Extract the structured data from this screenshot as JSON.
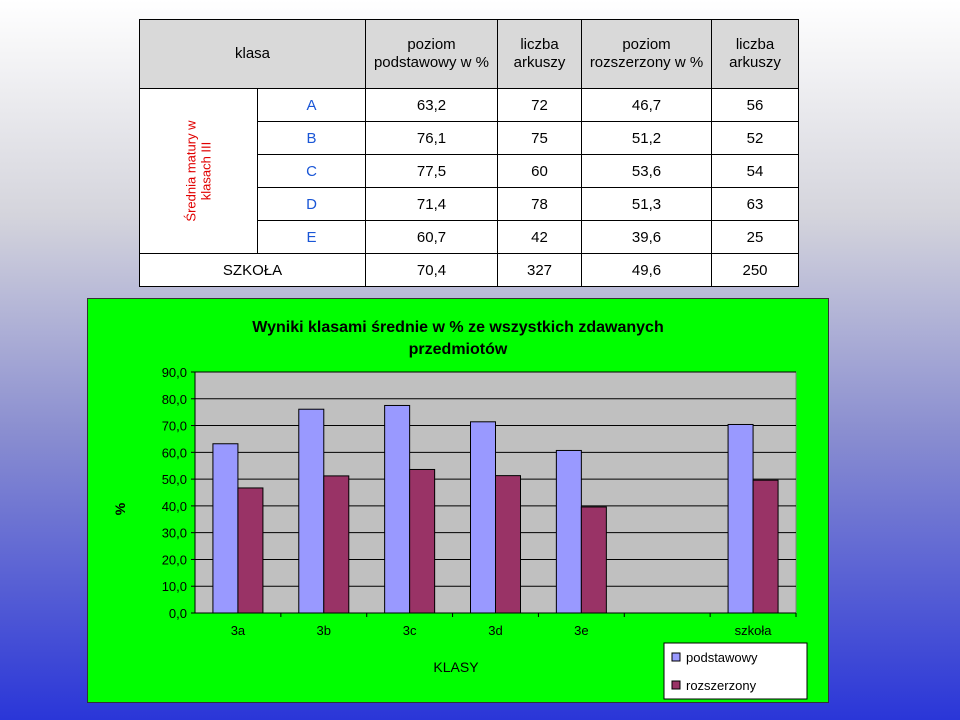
{
  "table": {
    "header": {
      "klasa": "klasa",
      "col1": [
        "poziom",
        "podstawowy w %"
      ],
      "col2": [
        "liczba",
        "arkuszy"
      ],
      "col3": [
        "poziom",
        "rozszerzony w %"
      ],
      "col4": [
        "liczba",
        "arkuszy"
      ]
    },
    "side_label": [
      "Średnia matury w",
      "klasach III"
    ],
    "rows": [
      {
        "cls": "A",
        "v1": "63,2",
        "v2": "72",
        "v3": "46,7",
        "v4": "56"
      },
      {
        "cls": "B",
        "v1": "76,1",
        "v2": "75",
        "v3": "51,2",
        "v4": "52"
      },
      {
        "cls": "C",
        "v1": "77,5",
        "v2": "60",
        "v3": "53,6",
        "v4": "54"
      },
      {
        "cls": "D",
        "v1": "71,4",
        "v2": "78",
        "v3": "51,3",
        "v4": "63"
      },
      {
        "cls": "E",
        "v1": "60,7",
        "v2": "42",
        "v3": "39,6",
        "v4": "25"
      }
    ],
    "total": {
      "label": "SZKOŁA",
      "v1": "70,4",
      "v2": "327",
      "v3": "49,6",
      "v4": "250"
    }
  },
  "chart_data": {
    "type": "bar",
    "title_lines": [
      "Wyniki klasami średnie w % ze wszystkich zdawanych",
      "przedmiotów"
    ],
    "xlabel": "KLASY",
    "ylabel": "%",
    "ylim": [
      0,
      90
    ],
    "ytick_step": 10,
    "categories": [
      "3a",
      "3b",
      "3c",
      "3d",
      "3e",
      "",
      "szkoła"
    ],
    "series": [
      {
        "name": "podstawowy",
        "color": "#9999ff",
        "values": [
          63.2,
          76.1,
          77.5,
          71.4,
          60.7,
          null,
          70.4
        ]
      },
      {
        "name": "rozszerzony",
        "color": "#993366",
        "values": [
          46.7,
          51.2,
          53.6,
          51.3,
          39.6,
          null,
          49.6
        ]
      }
    ],
    "plot_background": "#c0c0c0",
    "grid": true,
    "legend_position": "bottom-right"
  }
}
